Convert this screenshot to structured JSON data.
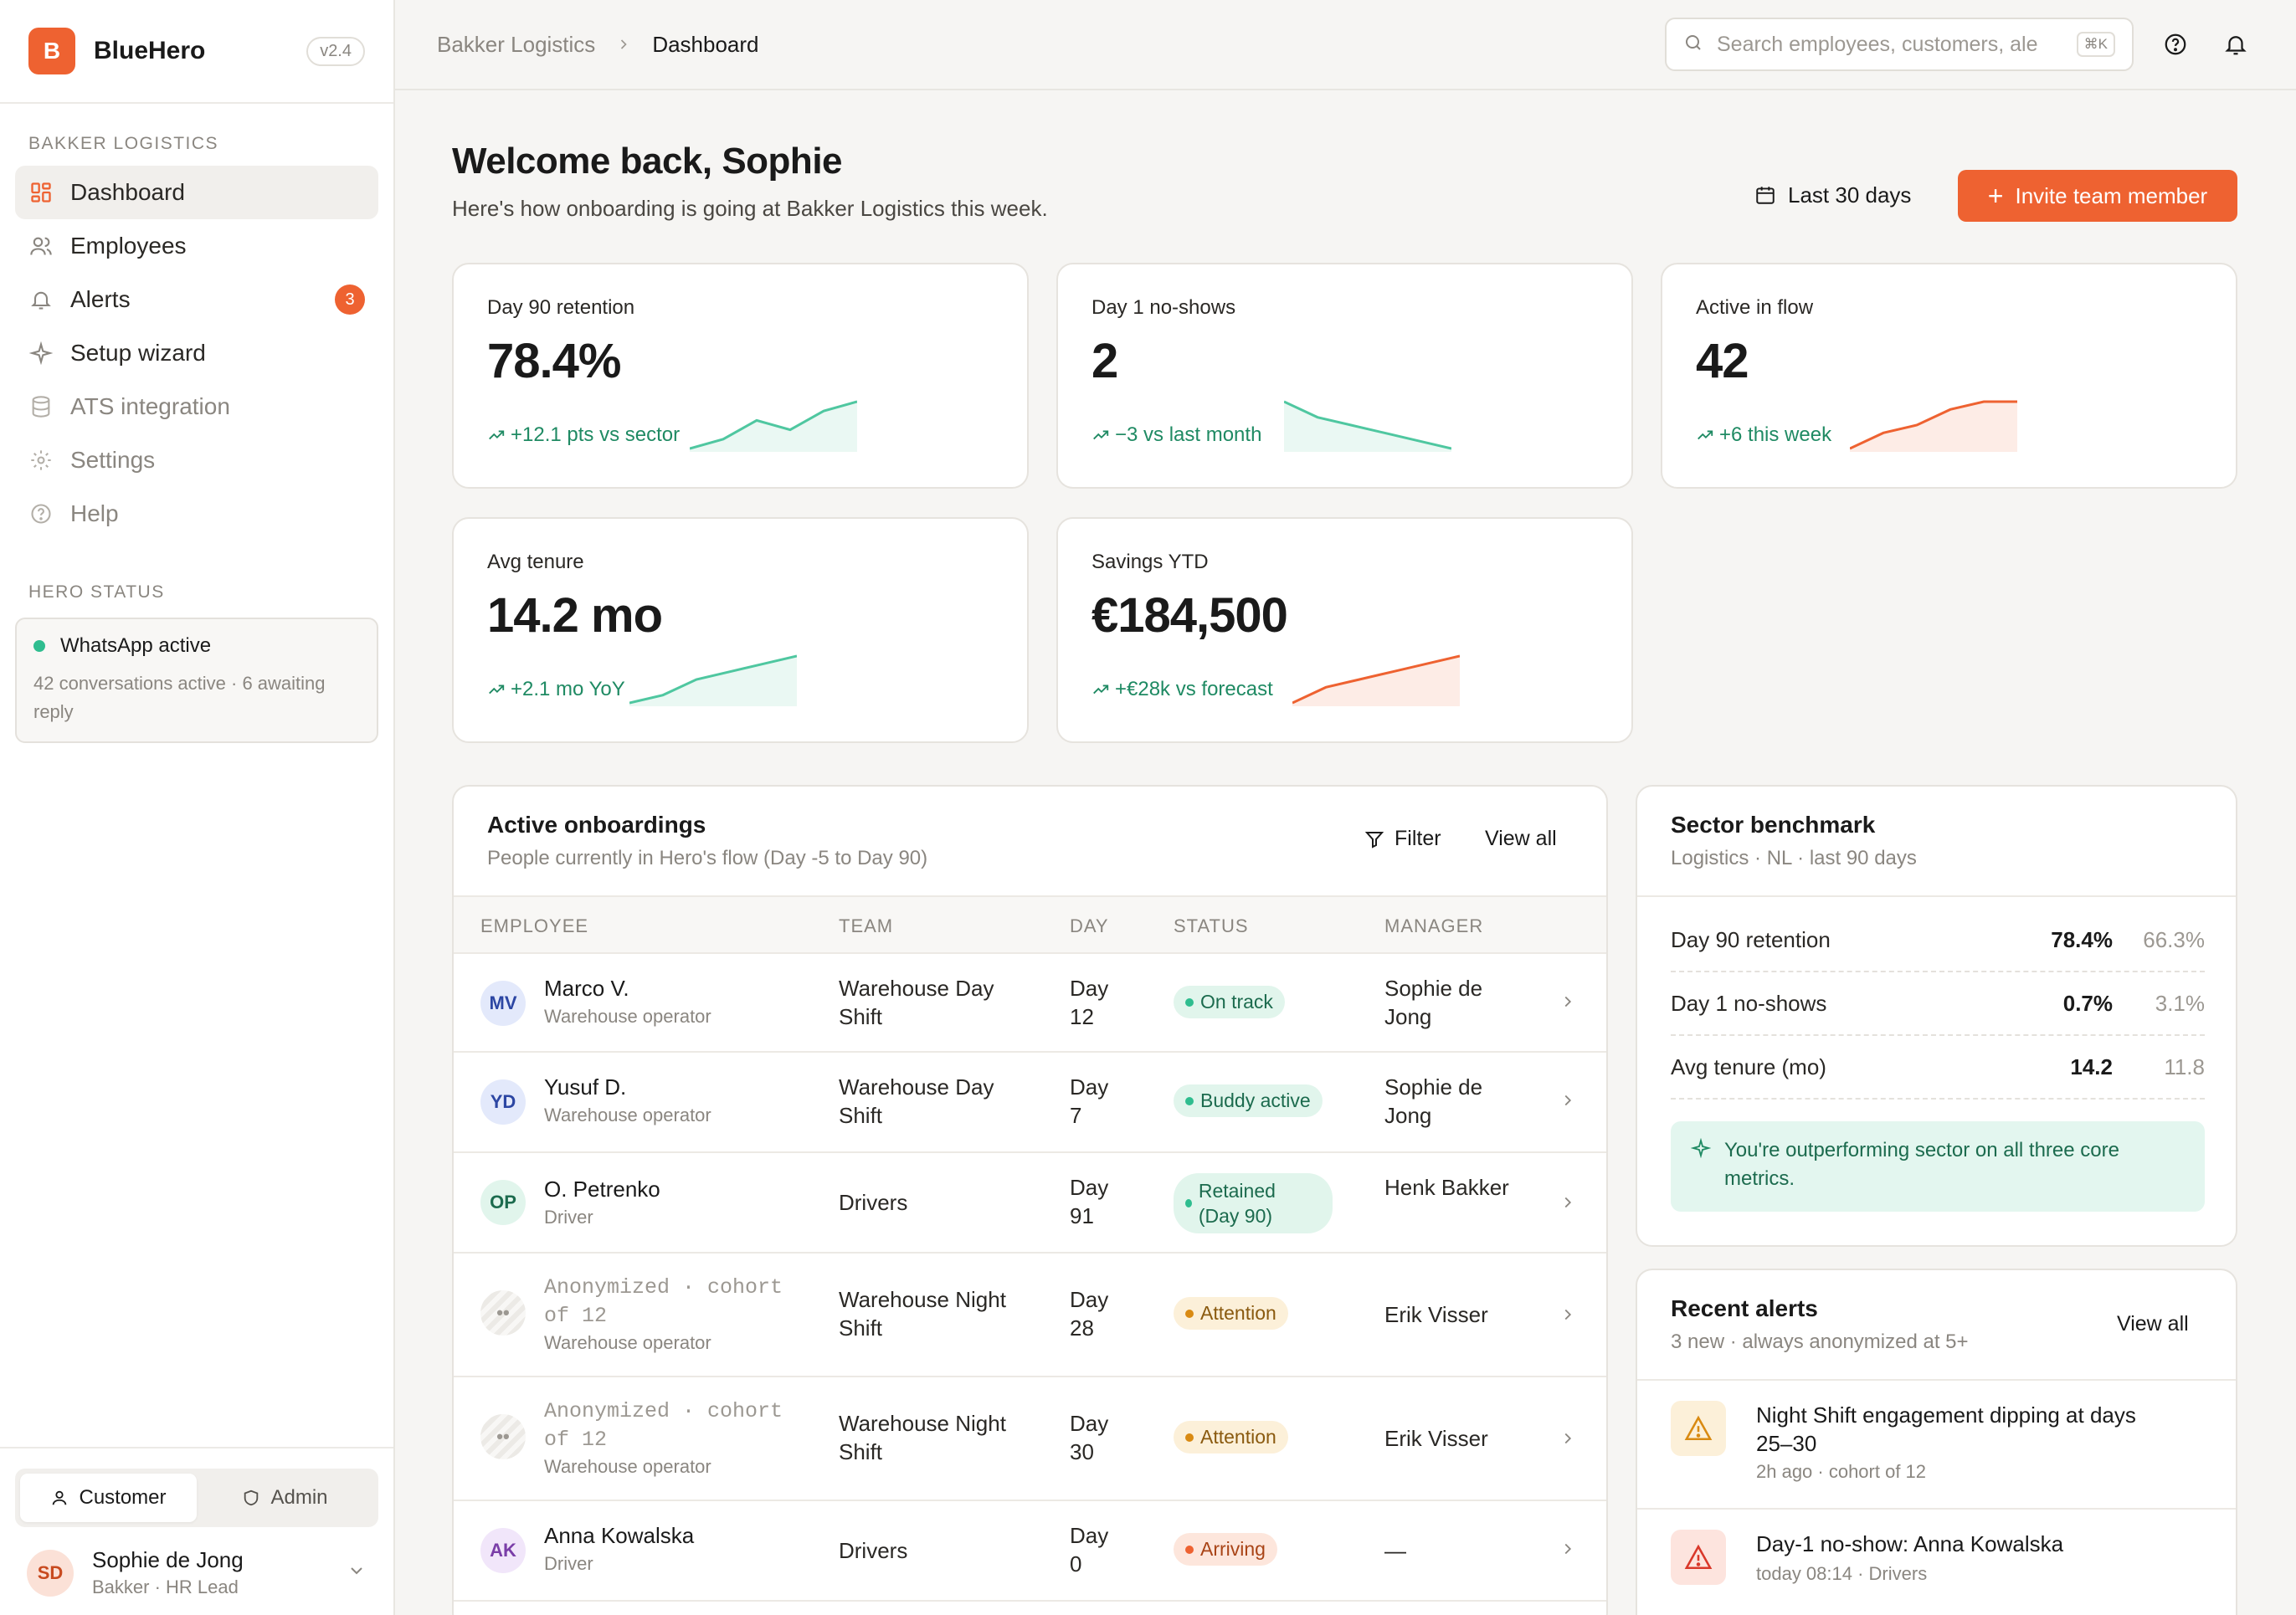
{
  "brand": {
    "initial": "B",
    "name": "BlueHero",
    "version": "v2.4"
  },
  "sidebar": {
    "org_section": "BAKKER LOGISTICS",
    "items": [
      {
        "label": "Dashboard",
        "icon": "grid-icon",
        "active": true
      },
      {
        "label": "Employees",
        "icon": "users-icon"
      },
      {
        "label": "Alerts",
        "icon": "bell-icon",
        "badge": "3"
      },
      {
        "label": "Setup wizard",
        "icon": "sparkle-icon"
      },
      {
        "label": "ATS integration",
        "icon": "database-icon",
        "dim": true
      },
      {
        "label": "Settings",
        "icon": "gear-icon",
        "dim": true
      },
      {
        "label": "Help",
        "icon": "help-icon",
        "dim": true
      }
    ],
    "status_section": "HERO STATUS",
    "status": {
      "title": "WhatsApp active",
      "detail": "42 conversations active · 6 awaiting reply"
    },
    "roles": {
      "customer": "Customer",
      "admin": "Admin",
      "selected": "Customer"
    },
    "user": {
      "initials": "SD",
      "name": "Sophie de Jong",
      "role": "Bakker · HR Lead"
    }
  },
  "topbar": {
    "breadcrumb_root": "Bakker Logistics",
    "breadcrumb_current": "Dashboard",
    "search_placeholder": "Search employees, customers, ale",
    "search_shortcut": "⌘K"
  },
  "welcome": {
    "title": "Welcome back, Sophie",
    "subtitle": "Here's how onboarding is going at Bakker Logistics this week.",
    "range_label": "Last 30 days",
    "invite_label": "Invite team member"
  },
  "kpis": [
    {
      "label": "Day 90 retention",
      "value": "78.4%",
      "trend": "+12.1 pts vs sector",
      "spark": [
        2,
        3,
        5,
        4,
        6,
        7
      ],
      "color": "#4fc7a0"
    },
    {
      "label": "Day 1 no-shows",
      "value": "2",
      "trend": "−3 vs last month",
      "spark": [
        7,
        5,
        4,
        3,
        2,
        1
      ],
      "color": "#4fc7a0"
    },
    {
      "label": "Active in flow",
      "value": "42",
      "trend": "+6 this week",
      "spark": [
        1,
        3,
        4,
        6,
        7,
        7
      ],
      "color": "#ee6231"
    },
    {
      "label": "Avg tenure",
      "value": "14.2 mo",
      "trend": "+2.1 mo YoY",
      "spark": [
        1,
        2,
        4,
        5,
        6,
        7
      ],
      "color": "#4fc7a0"
    },
    {
      "label": "Savings YTD",
      "value": "€184,500",
      "trend": "+€28k vs forecast",
      "spark": [
        1,
        3,
        4,
        5,
        6,
        7
      ],
      "color": "#ee6231"
    }
  ],
  "onboardings": {
    "title": "Active onboardings",
    "subtitle": "People currently in Hero's flow (Day -5 to Day 90)",
    "filter_label": "Filter",
    "view_all": "View all",
    "columns": [
      "EMPLOYEE",
      "TEAM",
      "DAY",
      "STATUS",
      "MANAGER"
    ],
    "rows": [
      {
        "initials": "MV",
        "name": "Marco V.",
        "role": "Warehouse operator",
        "team": "Warehouse Day Shift",
        "day": "Day 12",
        "status": "On track",
        "manager": "Sophie de Jong"
      },
      {
        "initials": "YD",
        "name": "Yusuf D.",
        "role": "Warehouse operator",
        "team": "Warehouse Day Shift",
        "day": "Day 7",
        "status": "Buddy active",
        "manager": "Sophie de Jong"
      },
      {
        "initials": "OP",
        "name": "O. Petrenko",
        "role": "Driver",
        "team": "Drivers",
        "day": "Day 91",
        "status": "Retained (Day 90)",
        "manager": "Henk Bakker"
      },
      {
        "initials": "••",
        "name": "Anonymized · cohort of 12",
        "role": "Warehouse operator",
        "team": "Warehouse Night Shift",
        "day": "Day 28",
        "status": "Attention",
        "manager": "Erik Visser"
      },
      {
        "initials": "••",
        "name": "Anonymized · cohort of 12",
        "role": "Warehouse operator",
        "team": "Warehouse Night Shift",
        "day": "Day 30",
        "status": "Attention",
        "manager": "Erik Visser"
      },
      {
        "initials": "AK",
        "name": "Anna Kowalska",
        "role": "Driver",
        "team": "Drivers",
        "day": "Day 0",
        "status": "Arriving",
        "manager": "—"
      }
    ]
  },
  "benchmark": {
    "title": "Sector benchmark",
    "subtitle": "Logistics · NL · last 90 days",
    "rows": [
      {
        "label": "Day 90 retention",
        "ours": "78.4%",
        "sector": "66.3%"
      },
      {
        "label": "Day 1 no-shows",
        "ours": "0.7%",
        "sector": "3.1%"
      },
      {
        "label": "Avg tenure (mo)",
        "ours": "14.2",
        "sector": "11.8"
      }
    ],
    "callout": "You're outperforming sector on all three core metrics."
  },
  "alerts": {
    "title": "Recent alerts",
    "subtitle": "3 new · always anonymized at 5+",
    "view_all": "View all",
    "items": [
      {
        "title": "Night Shift engagement dipping at days 25–30",
        "meta": "2h ago · cohort of 12",
        "severity": "warning"
      },
      {
        "title": "Day-1 no-show: Anna Kowalska",
        "meta": "today 08:14 · Drivers",
        "severity": "critical"
      }
    ]
  }
}
